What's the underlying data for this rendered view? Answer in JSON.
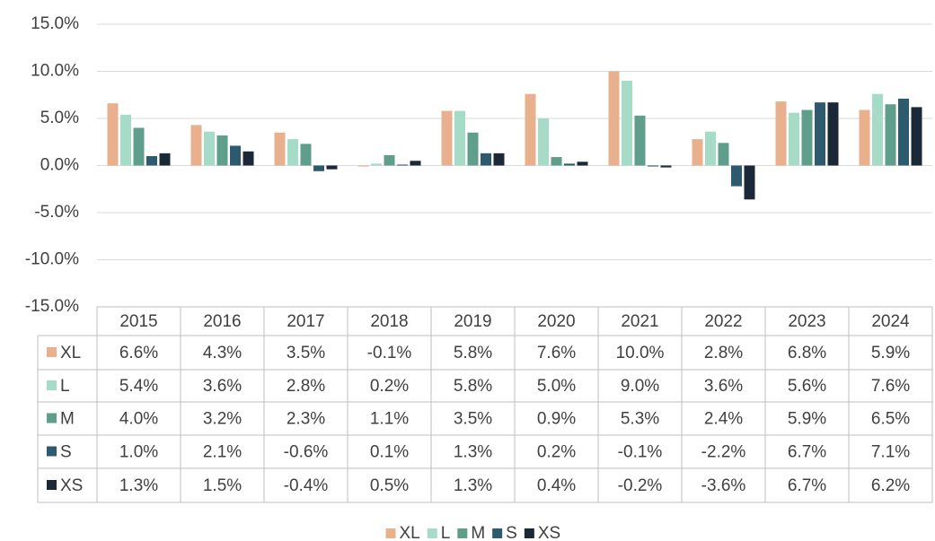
{
  "chart_data": {
    "type": "bar",
    "categories": [
      "2015",
      "2016",
      "2017",
      "2018",
      "2019",
      "2020",
      "2021",
      "2022",
      "2023",
      "2024"
    ],
    "series": [
      {
        "name": "XL",
        "color": "#e8b08c",
        "values": [
          6.6,
          4.3,
          3.5,
          -0.1,
          5.8,
          7.6,
          10.0,
          2.8,
          6.8,
          5.9
        ],
        "value_labels": [
          "6.6%",
          "4.3%",
          "3.5%",
          "-0.1%",
          "5.8%",
          "7.6%",
          "10.0%",
          "2.8%",
          "6.8%",
          "5.9%"
        ]
      },
      {
        "name": "L",
        "color": "#a6dbc7",
        "values": [
          5.4,
          3.6,
          2.8,
          0.2,
          5.8,
          5.0,
          9.0,
          3.6,
          5.6,
          7.6
        ],
        "value_labels": [
          "5.4%",
          "3.6%",
          "2.8%",
          "0.2%",
          "5.8%",
          "5.0%",
          "9.0%",
          "3.6%",
          "5.6%",
          "7.6%"
        ]
      },
      {
        "name": "M",
        "color": "#5f9e8b",
        "values": [
          4.0,
          3.2,
          2.3,
          1.1,
          3.5,
          0.9,
          5.3,
          2.4,
          5.9,
          6.5
        ],
        "value_labels": [
          "4.0%",
          "3.2%",
          "2.3%",
          "1.1%",
          "3.5%",
          "0.9%",
          "5.3%",
          "2.4%",
          "5.9%",
          "6.5%"
        ]
      },
      {
        "name": "S",
        "color": "#2e5a70",
        "values": [
          1.0,
          2.1,
          -0.6,
          0.1,
          1.3,
          0.2,
          -0.1,
          -2.2,
          6.7,
          7.1
        ],
        "value_labels": [
          "1.0%",
          "2.1%",
          "-0.6%",
          "0.1%",
          "1.3%",
          "0.2%",
          "-0.1%",
          "-2.2%",
          "6.7%",
          "7.1%"
        ]
      },
      {
        "name": "XS",
        "color": "#1b2837",
        "values": [
          1.3,
          1.5,
          -0.4,
          0.5,
          1.3,
          0.4,
          -0.2,
          -3.6,
          6.7,
          6.2
        ],
        "value_labels": [
          "1.3%",
          "1.5%",
          "-0.4%",
          "0.5%",
          "1.3%",
          "0.4%",
          "-0.2%",
          "-3.6%",
          "6.7%",
          "6.2%"
        ]
      }
    ],
    "ylim": [
      -15,
      15
    ],
    "yticks": [
      {
        "value": -15,
        "label": "-15.0%"
      },
      {
        "value": -10,
        "label": "-10.0%"
      },
      {
        "value": -5,
        "label": "-5.0%"
      },
      {
        "value": 0,
        "label": "0.0%"
      },
      {
        "value": 5,
        "label": "5.0%"
      },
      {
        "value": 10,
        "label": "10.0%"
      },
      {
        "value": 15,
        "label": "15.0%"
      }
    ],
    "grid": true
  }
}
